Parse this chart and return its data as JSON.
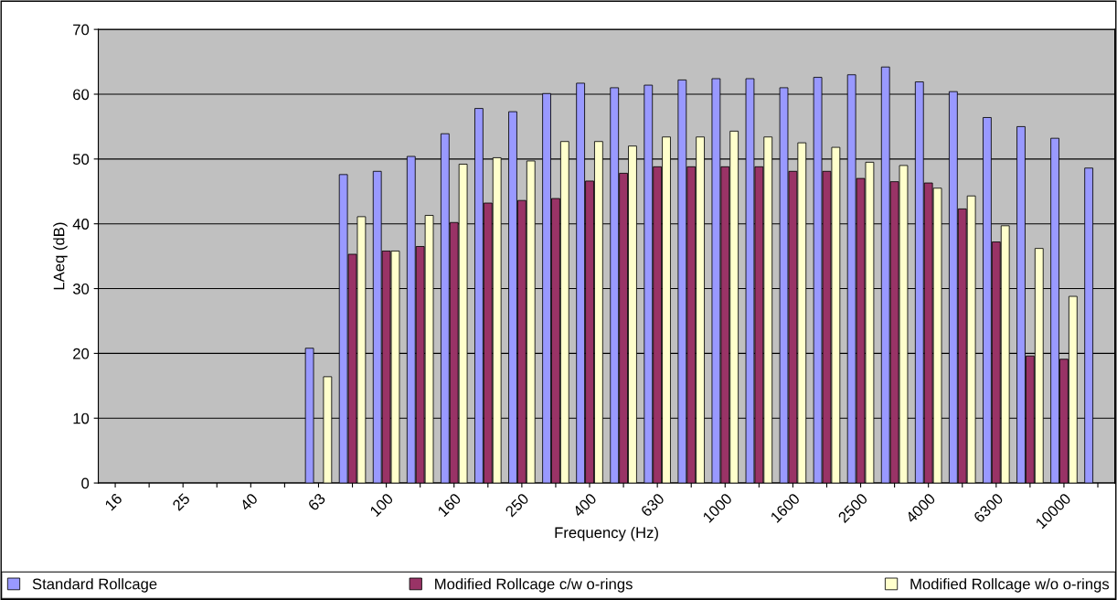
{
  "chart_data": {
    "type": "bar",
    "xlabel": "Frequency (Hz)",
    "ylabel": "LAeq (dB)",
    "categories": [
      "16",
      null,
      "25",
      null,
      "40",
      null,
      "63",
      null,
      "100",
      null,
      "160",
      null,
      "250",
      null,
      "400",
      null,
      "630",
      null,
      "1000",
      null,
      "1600",
      null,
      "2500",
      null,
      "4000",
      null,
      "6300",
      null,
      "10000",
      null
    ],
    "series": [
      {
        "name": "Standard Rollcage",
        "color": "#9999ff",
        "values": [
          null,
          null,
          null,
          null,
          null,
          null,
          20.8,
          47.6,
          48.1,
          50.4,
          53.9,
          57.8,
          57.3,
          60.1,
          61.7,
          61.0,
          61.4,
          62.2,
          62.4,
          62.4,
          61.0,
          62.6,
          63.0,
          64.2,
          61.9,
          60.4,
          56.4,
          55.0,
          53.2,
          48.6
        ]
      },
      {
        "name": "Modified Rollcage c/w o-rings",
        "color": "#993366",
        "values": [
          null,
          null,
          null,
          null,
          null,
          null,
          null,
          35.3,
          35.8,
          36.5,
          40.2,
          43.2,
          43.6,
          43.9,
          46.6,
          47.8,
          48.8,
          48.8,
          48.8,
          48.8,
          48.1,
          48.1,
          47.0,
          46.5,
          46.3,
          42.3,
          37.2,
          19.6,
          19.1,
          null
        ]
      },
      {
        "name": "Modified Rollcage w/o o-rings",
        "color": "#ffffcc",
        "values": [
          null,
          null,
          null,
          null,
          null,
          null,
          16.4,
          41.1,
          35.8,
          41.3,
          49.2,
          50.2,
          49.7,
          52.7,
          52.7,
          52.0,
          53.4,
          53.4,
          54.3,
          53.4,
          52.5,
          51.8,
          49.5,
          49.0,
          45.5,
          44.3,
          39.7,
          36.2,
          28.8,
          null
        ]
      }
    ],
    "ylim": [
      0,
      70
    ],
    "yticks": [
      0,
      10,
      20,
      30,
      40,
      50,
      60,
      70
    ],
    "grid": "y",
    "legend": "bottom"
  }
}
